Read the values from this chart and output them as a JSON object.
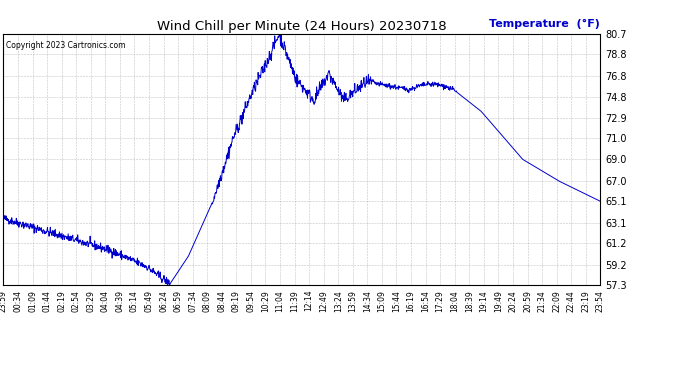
{
  "title": "Wind Chill per Minute (24 Hours) 20230718",
  "ylabel": "Temperature  (°F)",
  "copyright_text": "Copyright 2023 Cartronics.com",
  "line_color": "#0000cc",
  "background_color": "#ffffff",
  "grid_color": "#999999",
  "ylabel_color": "#0000cc",
  "title_color": "#000000",
  "ylim": [
    57.3,
    80.7
  ],
  "yticks": [
    57.3,
    59.2,
    61.2,
    63.1,
    65.1,
    67.0,
    69.0,
    71.0,
    72.9,
    74.8,
    76.8,
    78.8,
    80.7
  ],
  "xtick_labels": [
    "23:59",
    "00:34",
    "01:09",
    "01:44",
    "02:19",
    "02:54",
    "03:29",
    "04:04",
    "04:39",
    "05:14",
    "05:49",
    "06:24",
    "06:59",
    "07:34",
    "08:09",
    "08:44",
    "09:19",
    "09:54",
    "10:29",
    "11:04",
    "11:39",
    "12:14",
    "12:49",
    "13:24",
    "13:59",
    "14:34",
    "15:09",
    "15:44",
    "16:19",
    "16:54",
    "17:29",
    "18:04",
    "18:39",
    "19:14",
    "19:49",
    "20:24",
    "20:59",
    "21:34",
    "22:09",
    "22:44",
    "23:19",
    "23:54"
  ],
  "num_points": 1440
}
